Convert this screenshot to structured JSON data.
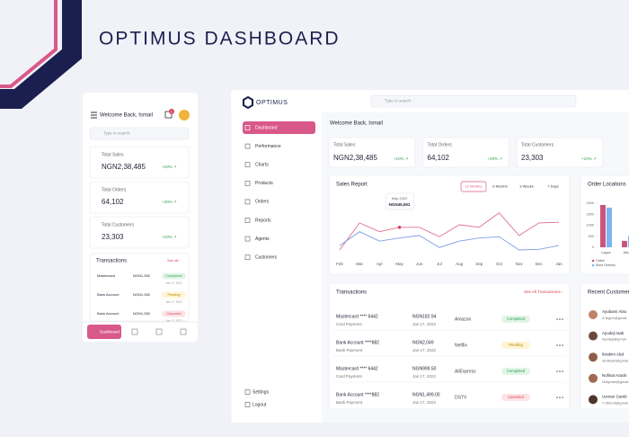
{
  "header": {
    "title": "OPTIMUS DASHBOARD"
  },
  "mobile": {
    "greeting": "Welcome Back, Ismail",
    "notifications": "2",
    "search": "Type to search",
    "stats": [
      {
        "label": "Total Sales",
        "value": "NGN2,38,485",
        "change": "+10% ↗"
      },
      {
        "label": "Total Orders",
        "value": "64,102",
        "change": "+20% ↗"
      },
      {
        "label": "Total Customers",
        "value": "23,303",
        "change": "+10% ↗"
      }
    ],
    "transactions": {
      "title": "Transactions",
      "see_all": "See all ›",
      "rows": [
        {
          "method": "Mastercard",
          "amount": "NGN1,350",
          "status": "Completed",
          "date": "Jan 17, 2022"
        },
        {
          "method": "Bank Account",
          "amount": "NGN1,350",
          "status": "Pending",
          "date": "Jan 17, 2022"
        },
        {
          "method": "Bank Account",
          "amount": "NGN1,350",
          "status": "Canceled",
          "date": "Jan 17, 2022"
        }
      ]
    },
    "nav": [
      "Dashboard"
    ]
  },
  "desktop": {
    "brand": "OPTIMUS",
    "search": "Type to search",
    "nav": [
      "Dashboard",
      "Performance",
      "Charts",
      "Products",
      "Orders",
      "Reports",
      "Agents",
      "Customers"
    ],
    "footer_nav": [
      "Settings",
      "Logout"
    ],
    "welcome": "Welcome Back, Ismail",
    "stats": [
      {
        "label": "Total Sales",
        "value": "NGN2,38,485",
        "change": "+10% ↗"
      },
      {
        "label": "Total Orders",
        "value": "64,102",
        "change": "+20% ↗"
      },
      {
        "label": "Total Customers",
        "value": "23,303",
        "change": "+10% ↗"
      }
    ],
    "transactions": {
      "title": "Transactions",
      "see_all": "See All Transactions  ›",
      "rows": [
        {
          "method": "Mastercard **** 6442",
          "type": "Card Payment",
          "amount": "NGN182.94",
          "date": "Jan 17, 2022",
          "merchant": "Amazon",
          "status": "Completed"
        },
        {
          "method": "Bank Account ****882",
          "type": "Bank Payment",
          "amount": "NGN2,049",
          "date": "Jan 17, 2022",
          "merchant": "Netflix",
          "status": "Pending"
        },
        {
          "method": "Mastercard **** 6442",
          "type": "Card Payment",
          "amount": "NGN999.50",
          "date": "Jan 17, 2022",
          "merchant": "AliExpress",
          "status": "Completed"
        },
        {
          "method": "Bank Account ****882",
          "type": "Bank Payment",
          "amount": "NGN1,499.00",
          "date": "Jan 17, 2022",
          "merchant": "DSTV",
          "status": "Canceled"
        }
      ]
    },
    "recent_customers": {
      "title": "Recent Customers",
      "items": [
        {
          "name": "Ayobami Abio",
          "email": "A.fegbe@gmail"
        },
        {
          "name": "Ayodeji Isak",
          "email": "Ayodeji@gmail"
        },
        {
          "name": "Ibrahim Abd",
          "email": "abdkadri@gmail"
        },
        {
          "name": "Nofisat Aracik",
          "email": "Nofgmail@gmail"
        },
        {
          "name": "Usman Gamb",
          "email": "Y78kholi@gmail"
        }
      ]
    }
  },
  "chart_data": [
    {
      "type": "line",
      "title": "Sales Report",
      "filters": [
        "12 Months",
        "6 Months",
        "3 Weeks",
        "7 Days"
      ],
      "categories": [
        "Feb",
        "Mar",
        "Apr",
        "May",
        "Jun",
        "Jul",
        "Aug",
        "Sep",
        "Oct",
        "Nov",
        "Dec",
        "Jan"
      ],
      "series": [
        {
          "color": "#e0708f",
          "values": [
            10,
            53,
            39,
            46,
            46,
            31,
            50,
            46,
            69,
            33,
            53,
            54
          ]
        },
        {
          "color": "#7f9ee6",
          "values": [
            17,
            39,
            24,
            29,
            33,
            14,
            24,
            29,
            31,
            10,
            11,
            17
          ]
        }
      ],
      "ylim": [
        0,
        100
      ],
      "annotation": {
        "title": "May 2022",
        "value": "NGN45,591"
      }
    },
    {
      "type": "bar",
      "title": "Order Locations",
      "categories": [
        "Lagos",
        "Abuja"
      ],
      "series": [
        {
          "name": "Online",
          "color": "#c8557c",
          "values": [
            1920,
            290
          ]
        },
        {
          "name": "Store Delivery",
          "color": "#7fb2f0",
          "values": [
            1800,
            520
          ]
        }
      ],
      "ylim": [
        0,
        2000
      ],
      "yticks": [
        0,
        500,
        1000,
        1500,
        2000
      ]
    }
  ]
}
